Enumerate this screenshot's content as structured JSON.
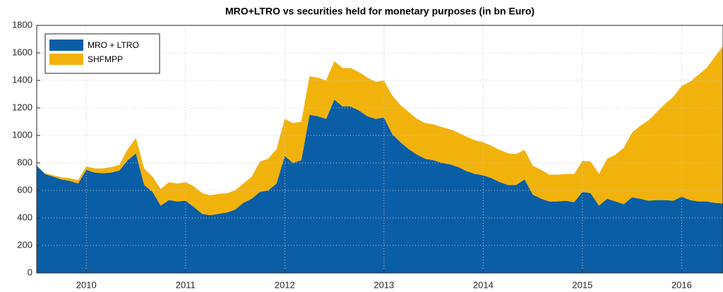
{
  "chart_data": {
    "type": "stacked-area",
    "title": "MRO+LTRO vs securities held for monetary purposes (in bn Euro)",
    "x": [
      2009.5,
      2009.583,
      2009.667,
      2009.75,
      2009.833,
      2009.917,
      2010,
      2010.083,
      2010.167,
      2010.25,
      2010.333,
      2010.417,
      2010.5,
      2010.583,
      2010.667,
      2010.75,
      2010.833,
      2010.917,
      2011,
      2011.083,
      2011.167,
      2011.25,
      2011.333,
      2011.417,
      2011.5,
      2011.583,
      2011.667,
      2011.75,
      2011.833,
      2011.917,
      2012,
      2012.083,
      2012.167,
      2012.25,
      2012.333,
      2012.417,
      2012.5,
      2012.583,
      2012.667,
      2012.75,
      2012.833,
      2012.917,
      2013,
      2013.083,
      2013.167,
      2013.25,
      2013.333,
      2013.417,
      2013.5,
      2013.583,
      2013.667,
      2013.75,
      2013.833,
      2013.917,
      2014,
      2014.083,
      2014.167,
      2014.25,
      2014.333,
      2014.417,
      2014.5,
      2014.583,
      2014.667,
      2014.75,
      2014.833,
      2014.917,
      2015,
      2015.083,
      2015.167,
      2015.25,
      2015.333,
      2015.417,
      2015.5,
      2015.583,
      2015.667,
      2015.75,
      2015.833,
      2015.917,
      2016,
      2016.083,
      2016.167,
      2016.25,
      2016.333,
      2016.417
    ],
    "series": [
      {
        "name": "MRO + LTRO",
        "color": "#0a5ea6",
        "values": [
          780,
          720,
          700,
          680,
          670,
          650,
          750,
          730,
          725,
          730,
          745,
          820,
          870,
          640,
          590,
          490,
          530,
          520,
          525,
          480,
          430,
          420,
          430,
          440,
          460,
          510,
          540,
          590,
          600,
          650,
          850,
          800,
          820,
          1150,
          1140,
          1120,
          1260,
          1210,
          1210,
          1180,
          1140,
          1120,
          1130,
          1010,
          950,
          900,
          860,
          830,
          820,
          800,
          790,
          770,
          740,
          720,
          710,
          690,
          660,
          640,
          640,
          680,
          570,
          540,
          520,
          520,
          525,
          515,
          590,
          580,
          490,
          540,
          520,
          500,
          550,
          540,
          525,
          530,
          530,
          525,
          555,
          530,
          520,
          520,
          510,
          505
        ]
      },
      {
        "name": "SHFMPP",
        "color": "#f2b20c",
        "values": [
          0,
          5,
          10,
          15,
          20,
          25,
          25,
          30,
          35,
          40,
          40,
          80,
          110,
          120,
          110,
          120,
          130,
          130,
          135,
          150,
          150,
          145,
          145,
          140,
          140,
          140,
          160,
          220,
          230,
          250,
          270,
          290,
          280,
          280,
          280,
          280,
          280,
          280,
          280,
          280,
          280,
          270,
          270,
          280,
          270,
          270,
          260,
          260,
          260,
          260,
          255,
          250,
          250,
          245,
          240,
          235,
          235,
          230,
          225,
          215,
          210,
          210,
          195,
          195,
          195,
          205,
          225,
          230,
          230,
          290,
          340,
          410,
          470,
          530,
          585,
          640,
          700,
          755,
          805,
          860,
          920,
          970,
          1060,
          1145
        ]
      }
    ],
    "xlim": [
      2009.5,
      2016.417
    ],
    "xticks": [
      2010,
      2011,
      2012,
      2013,
      2014,
      2015,
      2016
    ],
    "ylim": [
      0,
      1800
    ],
    "yticks": [
      0,
      200,
      400,
      600,
      800,
      1000,
      1200,
      1400,
      1600,
      1800
    ],
    "grid": true,
    "legend": "upper-left"
  }
}
